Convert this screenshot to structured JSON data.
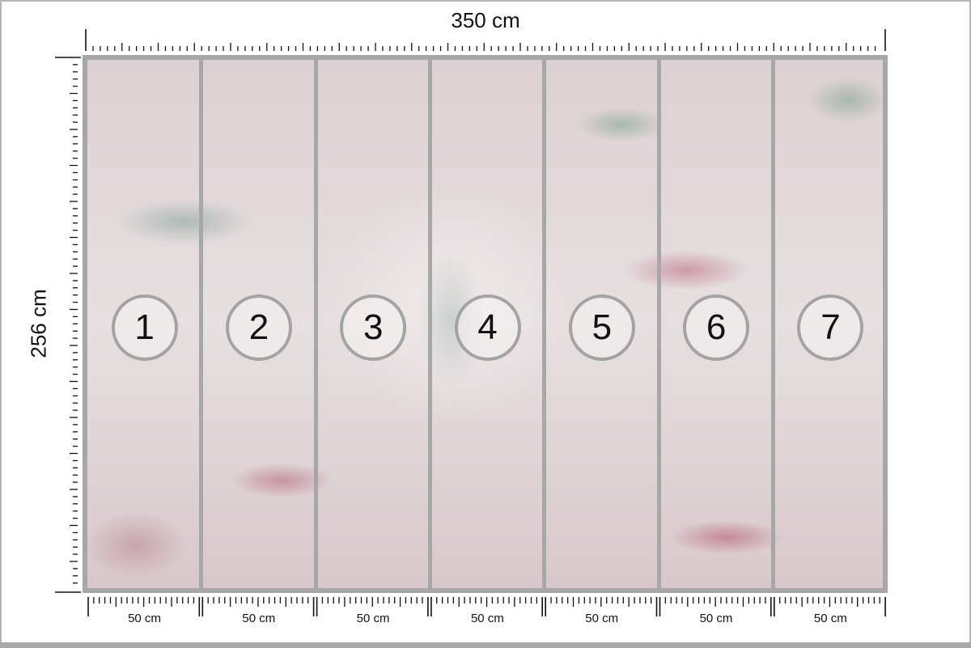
{
  "dimensions": {
    "width_label": "350 cm",
    "height_label": "256 cm"
  },
  "panels": [
    {
      "number": "1",
      "width_label": "50 cm"
    },
    {
      "number": "2",
      "width_label": "50 cm"
    },
    {
      "number": "3",
      "width_label": "50 cm"
    },
    {
      "number": "4",
      "width_label": "50 cm"
    },
    {
      "number": "5",
      "width_label": "50 cm"
    },
    {
      "number": "6",
      "width_label": "50 cm"
    },
    {
      "number": "7",
      "width_label": "50 cm"
    }
  ],
  "colors": {
    "border": "#a7a7a7",
    "leaf_pink": "#b04a68",
    "leaf_green": "#6f9a88"
  }
}
